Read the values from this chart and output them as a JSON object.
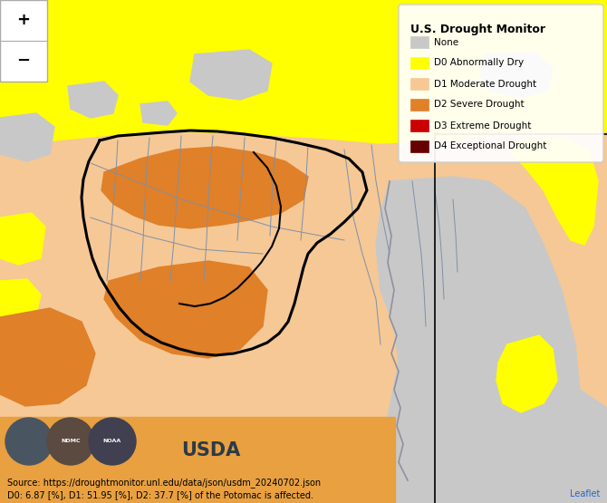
{
  "title": "U.S. Drought Monitor",
  "legend_items": [
    {
      "label": "None",
      "color": "#c8c8c8"
    },
    {
      "label": "D0 Abnormally Dry",
      "color": "#ffff00"
    },
    {
      "label": "D1 Moderate Drought",
      "color": "#f5c896"
    },
    {
      "label": "D2 Severe Drought",
      "color": "#e08028"
    },
    {
      "label": "D3 Extreme Drought",
      "color": "#cc0000"
    },
    {
      "label": "D4 Exceptional Drought",
      "color": "#660000"
    }
  ],
  "source_text": "Source: https://droughtmonitor.unl.edu/data/json/usdm_20240702.json",
  "data_text": "D0: 6.87 [%], D1: 51.95 [%], D2: 37.7 [%] of the Potomac is affected.",
  "leaflet_text": "Leaflet",
  "zoom_plus": "+",
  "zoom_minus": "−",
  "bg_gray": "#c8c8c8",
  "yellow": "#ffff00",
  "light_orange": "#f5c896",
  "orange": "#e08028",
  "figsize": [
    6.7,
    5.55
  ],
  "dpi": 100
}
